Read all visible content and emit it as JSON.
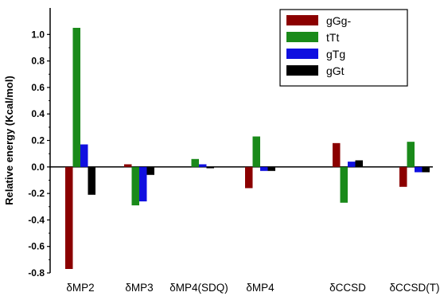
{
  "chart_data": {
    "type": "bar",
    "categories": [
      "δMP2",
      "δMP3",
      "δMP4(SDQ)",
      "δMP4",
      "δCCSD",
      "δCCSD(T)"
    ],
    "series": [
      {
        "name": "gGg-",
        "color": "#8b0000",
        "values": [
          -0.77,
          0.02,
          0.0,
          -0.16,
          0.18,
          -0.15
        ]
      },
      {
        "name": "tTt",
        "color": "#1a8a1a",
        "values": [
          1.05,
          -0.29,
          0.06,
          0.23,
          -0.27,
          0.19
        ]
      },
      {
        "name": "gTg",
        "color": "#1010e0",
        "values": [
          0.17,
          -0.26,
          0.02,
          -0.03,
          0.04,
          -0.04
        ]
      },
      {
        "name": "gGt",
        "color": "#000000",
        "values": [
          -0.21,
          -0.06,
          -0.01,
          -0.03,
          0.05,
          -0.04
        ]
      }
    ],
    "xlabel": "",
    "ylabel": "Relative energy (Kcal/mol)",
    "ylim": [
      -0.8,
      1.2
    ],
    "yticks": [
      -0.8,
      -0.6,
      -0.4,
      -0.2,
      0.0,
      0.2,
      0.4,
      0.6,
      0.8,
      1.0
    ],
    "ytick_labels": [
      "-0.8",
      "-0.6",
      "-0.4",
      "-0.2",
      "0.0",
      "0.2",
      "0.4",
      "0.6",
      "0.8",
      "1.0"
    ],
    "grid": false,
    "legend_position": "top-right"
  }
}
